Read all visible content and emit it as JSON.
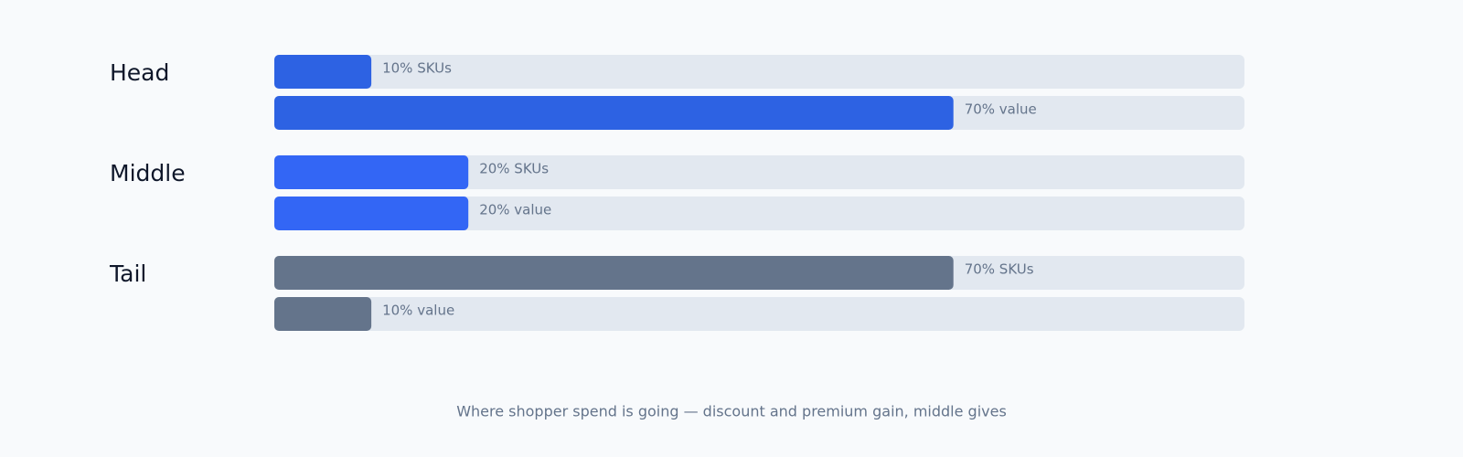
{
  "chart_data": {
    "type": "bar",
    "orientation": "horizontal",
    "categories": [
      "Head",
      "Middle",
      "Tail"
    ],
    "colors": [
      "#2d62e3",
      "#3366f5",
      "#64748b"
    ],
    "track_color": "#e2e8f0",
    "xlim": [
      0,
      100
    ],
    "series": [
      {
        "values": [
          10,
          20,
          70
        ],
        "value_labels": [
          "10% SKUs",
          "20% SKUs",
          "70% SKUs"
        ]
      },
      {
        "values": [
          70,
          20,
          10
        ],
        "value_labels": [
          "70% value",
          "20% value",
          "10% value"
        ]
      }
    ],
    "caption": "Where shopper spend is going — discount and premium gain, middle gives"
  }
}
